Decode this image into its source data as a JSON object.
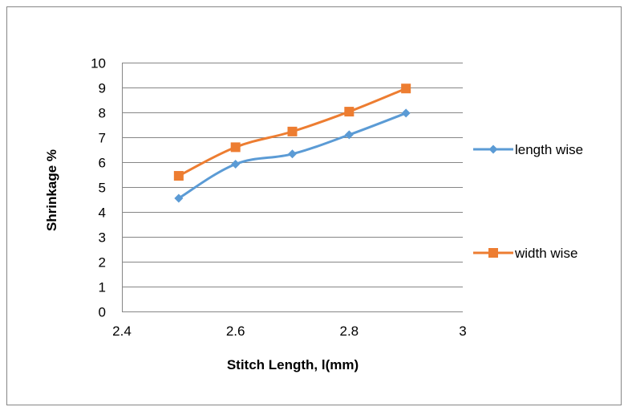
{
  "chart_data": {
    "type": "line",
    "title": "",
    "xlabel": "Stitch Length, l(mm)",
    "ylabel": "Shrinkage %",
    "xlim": [
      2.4,
      3
    ],
    "ylim": [
      0,
      10
    ],
    "x_ticks": [
      "2.4",
      "2.6",
      "2.8",
      "3"
    ],
    "y_ticks": [
      "0",
      "1",
      "2",
      "3",
      "4",
      "5",
      "6",
      "7",
      "8",
      "9",
      "10"
    ],
    "grid": "horizontal",
    "legend_position": "right",
    "series": [
      {
        "name": "length wise",
        "color": "#5B9BD5",
        "marker": "diamond",
        "points": [
          {
            "x": 2.5,
            "y": 4.55
          },
          {
            "x": 2.6,
            "y": 5.92
          },
          {
            "x": 2.7,
            "y": 6.33
          },
          {
            "x": 2.8,
            "y": 7.1
          },
          {
            "x": 2.9,
            "y": 7.97
          }
        ]
      },
      {
        "name": "width wise",
        "color": "#ED7D31",
        "marker": "square",
        "points": [
          {
            "x": 2.5,
            "y": 5.45
          },
          {
            "x": 2.6,
            "y": 6.6
          },
          {
            "x": 2.7,
            "y": 7.23
          },
          {
            "x": 2.8,
            "y": 8.03
          },
          {
            "x": 2.9,
            "y": 8.96
          }
        ]
      }
    ]
  }
}
